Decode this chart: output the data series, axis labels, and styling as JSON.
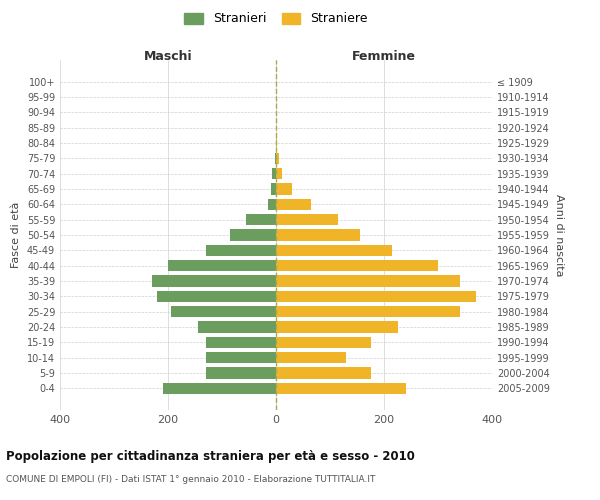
{
  "age_groups": [
    "100+",
    "95-99",
    "90-94",
    "85-89",
    "80-84",
    "75-79",
    "70-74",
    "65-69",
    "60-64",
    "55-59",
    "50-54",
    "45-49",
    "40-44",
    "35-39",
    "30-34",
    "25-29",
    "20-24",
    "15-19",
    "10-14",
    "5-9",
    "0-4"
  ],
  "birth_years": [
    "≤ 1909",
    "1910-1914",
    "1915-1919",
    "1920-1924",
    "1925-1929",
    "1930-1934",
    "1935-1939",
    "1940-1944",
    "1945-1949",
    "1950-1954",
    "1955-1959",
    "1960-1964",
    "1965-1969",
    "1970-1974",
    "1975-1979",
    "1980-1984",
    "1985-1989",
    "1990-1994",
    "1995-1999",
    "2000-2004",
    "2005-2009"
  ],
  "males": [
    0,
    0,
    0,
    0,
    0,
    2,
    8,
    10,
    15,
    55,
    85,
    130,
    200,
    230,
    220,
    195,
    145,
    130,
    130,
    130,
    210
  ],
  "females": [
    0,
    0,
    0,
    0,
    2,
    5,
    12,
    30,
    65,
    115,
    155,
    215,
    300,
    340,
    370,
    340,
    225,
    175,
    130,
    175,
    240
  ],
  "male_color": "#6b9e5e",
  "female_color": "#f0b429",
  "background_color": "#ffffff",
  "grid_color": "#d0d0d0",
  "title": "Popolazione per cittadinanza straniera per età e sesso - 2010",
  "subtitle": "COMUNE DI EMPOLI (FI) - Dati ISTAT 1° gennaio 2010 - Elaborazione TUTTITALIA.IT",
  "xlabel_left": "Maschi",
  "xlabel_right": "Femmine",
  "ylabel_left": "Fasce di età",
  "ylabel_right": "Anni di nascita",
  "legend_male": "Stranieri",
  "legend_female": "Straniere",
  "xlim": 400,
  "bar_height": 0.75
}
